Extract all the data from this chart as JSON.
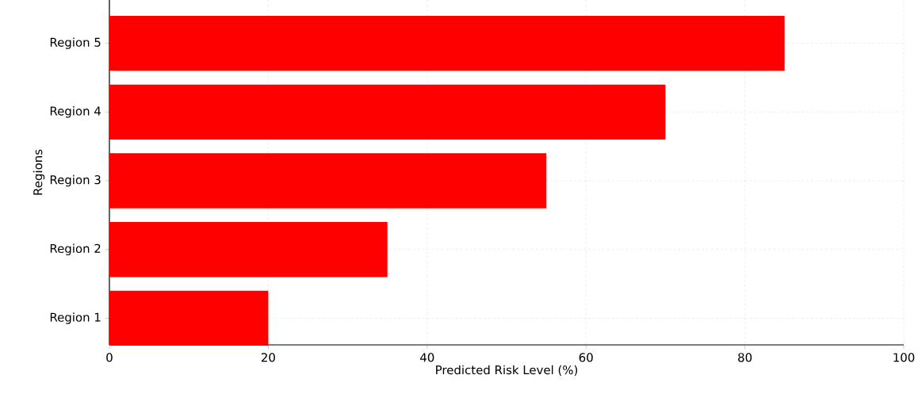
{
  "chart_data": {
    "type": "bar",
    "orientation": "horizontal",
    "xlabel": "Predicted Risk Level (%)",
    "ylabel": "Regions",
    "categories": [
      "Region 5",
      "Region 4",
      "Region 3",
      "Region 2",
      "Region 1"
    ],
    "values": [
      85,
      70,
      55,
      35,
      20
    ],
    "color": "#ff0000",
    "xlim": [
      0,
      100
    ],
    "xticks": [
      0,
      20,
      40,
      60,
      80,
      100
    ],
    "grid": true
  }
}
